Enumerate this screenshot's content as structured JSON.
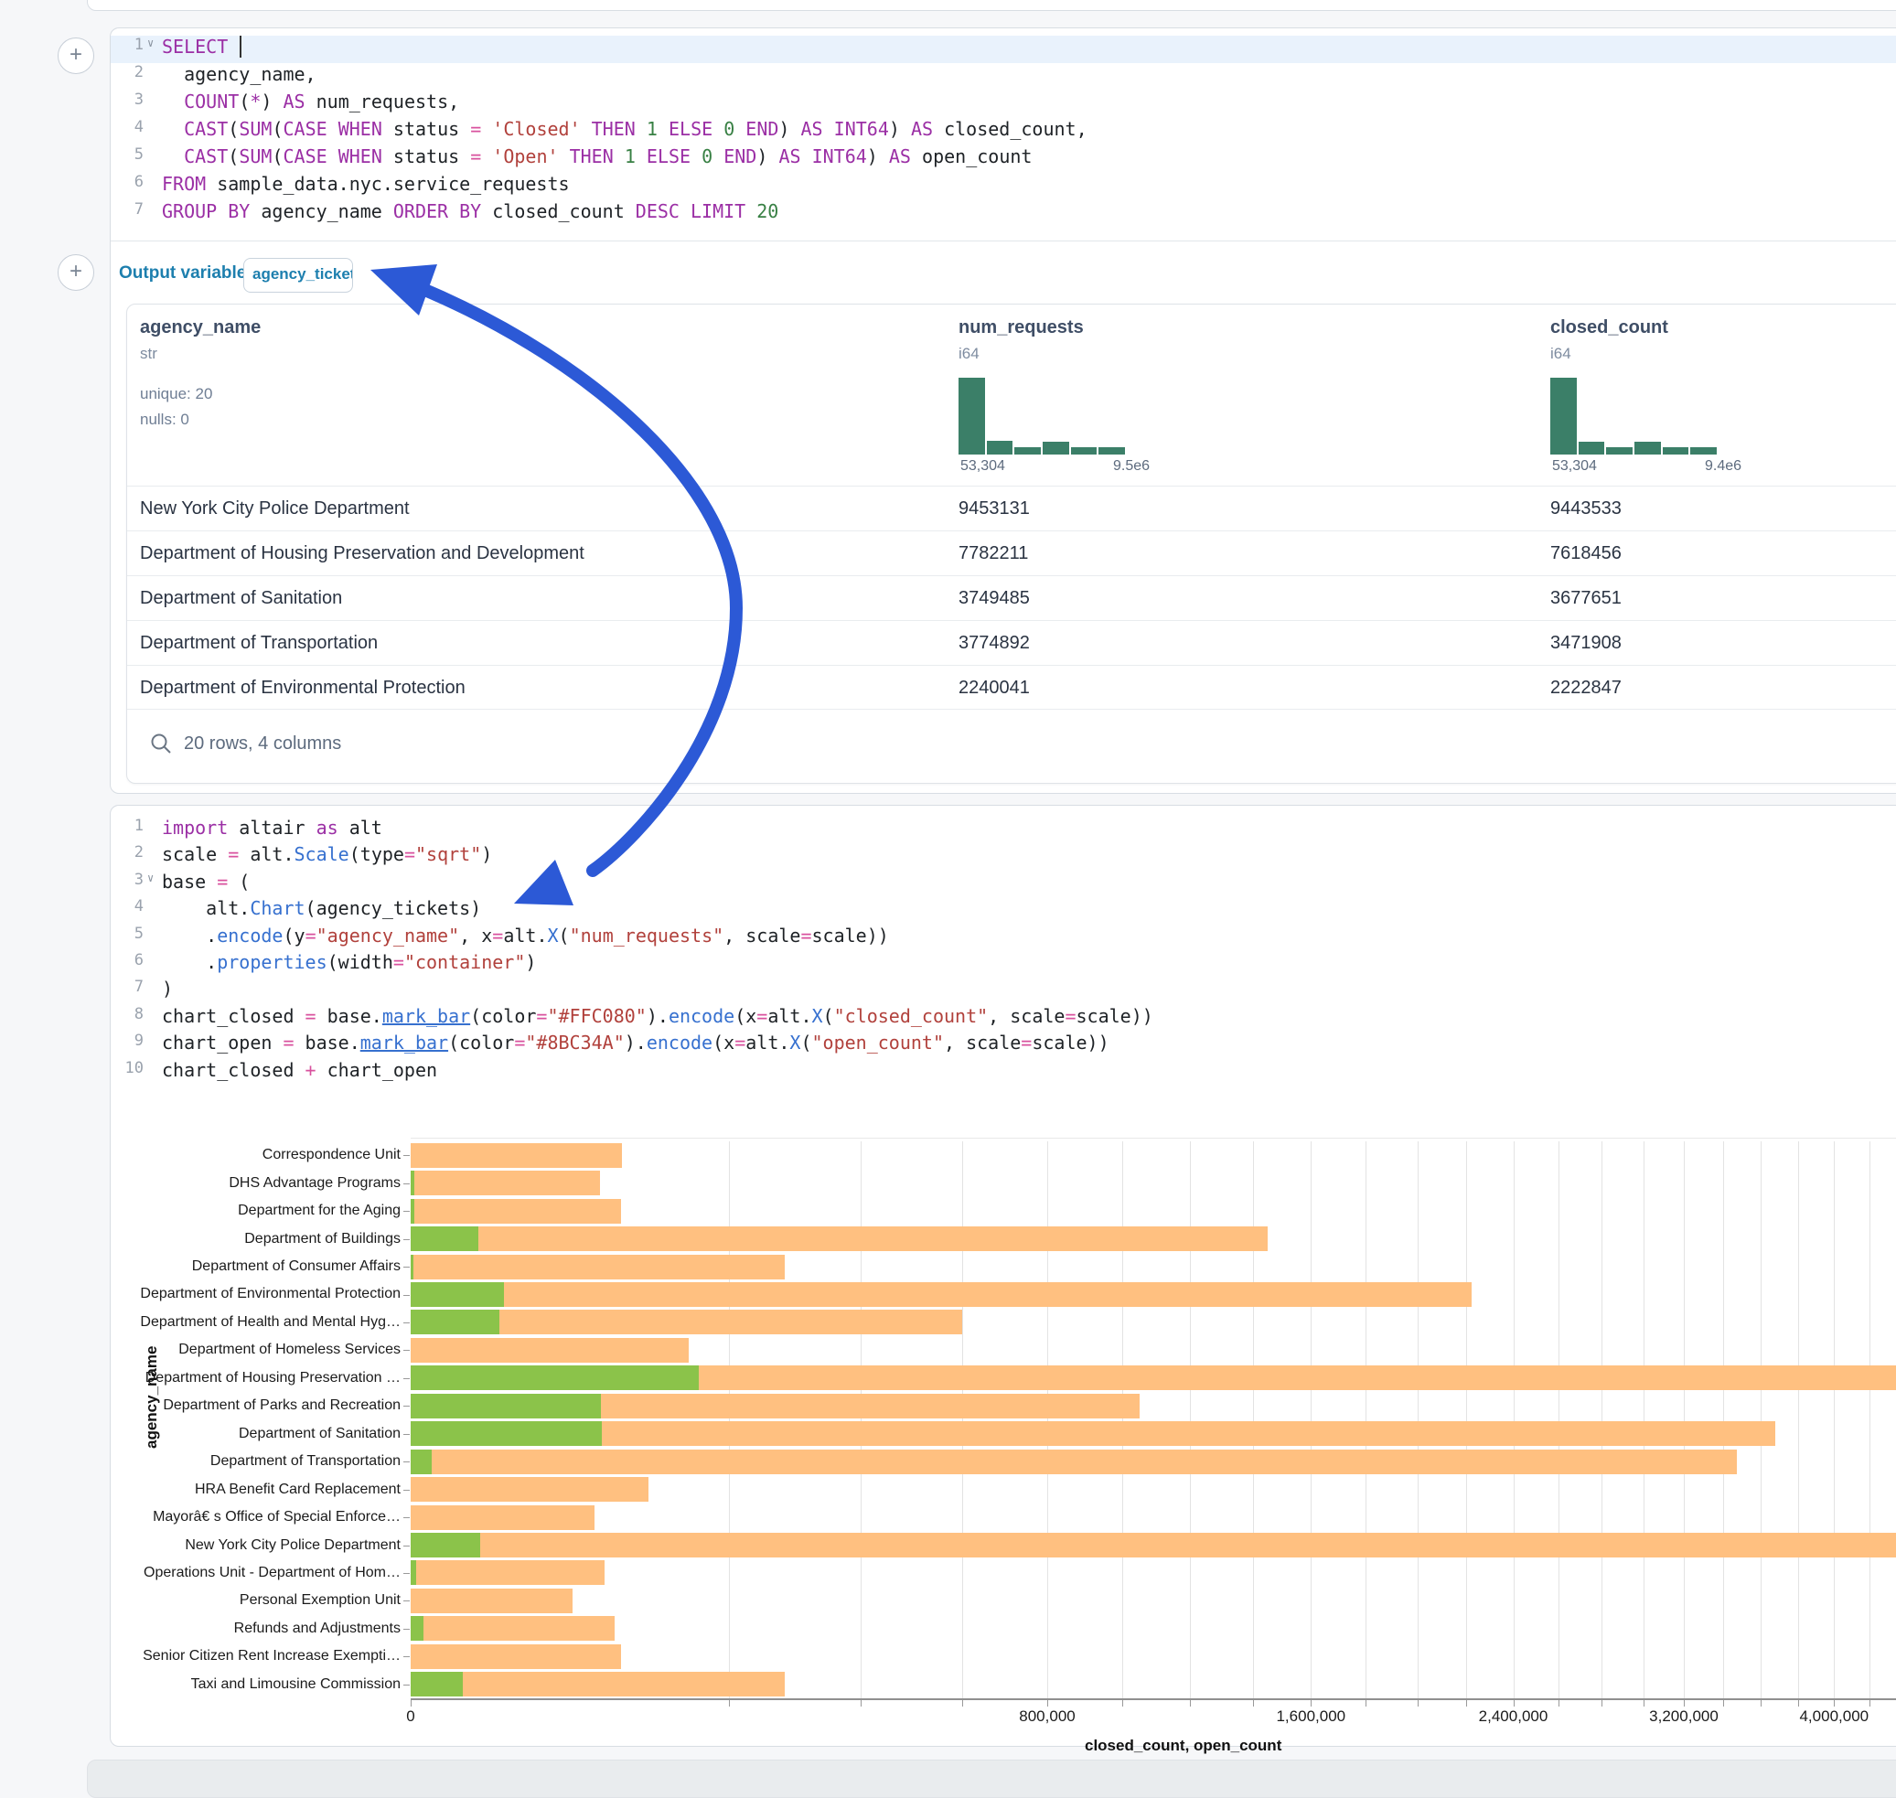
{
  "colors": {
    "keyword": "#9b2fa5",
    "string": "#b1413c",
    "number": "#388044",
    "operator": "#d8519e",
    "function": "#3670cf",
    "hist_bar": "#3b7f68",
    "arrow": "#2c59d6",
    "closed_bar_code": "#FFC080",
    "open_bar_code": "#8BC34A"
  },
  "cells": {
    "add_button_label": "+"
  },
  "sql_cell": {
    "lines": [
      {
        "n": "1",
        "fold": true,
        "active": true,
        "caret": true,
        "segments": [
          [
            "kw",
            "SELECT"
          ],
          [
            "pl",
            " "
          ]
        ]
      },
      {
        "n": "2",
        "segments": [
          [
            "pl",
            "  agency_name,"
          ]
        ]
      },
      {
        "n": "3",
        "segments": [
          [
            "pl",
            "  "
          ],
          [
            "kw",
            "COUNT"
          ],
          [
            "pl",
            "("
          ],
          [
            "kw",
            "*"
          ],
          [
            "pl",
            ") "
          ],
          [
            "kw",
            "AS"
          ],
          [
            "pl",
            " num_requests,"
          ]
        ]
      },
      {
        "n": "4",
        "segments": [
          [
            "pl",
            "  "
          ],
          [
            "kw",
            "CAST"
          ],
          [
            "pl",
            "("
          ],
          [
            "kw",
            "SUM"
          ],
          [
            "pl",
            "("
          ],
          [
            "kw",
            "CASE"
          ],
          [
            "pl",
            " "
          ],
          [
            "kw",
            "WHEN"
          ],
          [
            "pl",
            " status "
          ],
          [
            "op",
            "="
          ],
          [
            "pl",
            " "
          ],
          [
            "str",
            "'Closed'"
          ],
          [
            "pl",
            " "
          ],
          [
            "kw",
            "THEN"
          ],
          [
            "pl",
            " "
          ],
          [
            "num",
            "1"
          ],
          [
            "pl",
            " "
          ],
          [
            "kw",
            "ELSE"
          ],
          [
            "pl",
            " "
          ],
          [
            "num",
            "0"
          ],
          [
            "pl",
            " "
          ],
          [
            "kw",
            "END"
          ],
          [
            "pl",
            ") "
          ],
          [
            "kw",
            "AS"
          ],
          [
            "pl",
            " "
          ],
          [
            "kw",
            "INT64"
          ],
          [
            "pl",
            ") "
          ],
          [
            "kw",
            "AS"
          ],
          [
            "pl",
            " closed_count,"
          ]
        ]
      },
      {
        "n": "5",
        "segments": [
          [
            "pl",
            "  "
          ],
          [
            "kw",
            "CAST"
          ],
          [
            "pl",
            "("
          ],
          [
            "kw",
            "SUM"
          ],
          [
            "pl",
            "("
          ],
          [
            "kw",
            "CASE"
          ],
          [
            "pl",
            " "
          ],
          [
            "kw",
            "WHEN"
          ],
          [
            "pl",
            " status "
          ],
          [
            "op",
            "="
          ],
          [
            "pl",
            " "
          ],
          [
            "str",
            "'Open'"
          ],
          [
            "pl",
            " "
          ],
          [
            "kw",
            "THEN"
          ],
          [
            "pl",
            " "
          ],
          [
            "num",
            "1"
          ],
          [
            "pl",
            " "
          ],
          [
            "kw",
            "ELSE"
          ],
          [
            "pl",
            " "
          ],
          [
            "num",
            "0"
          ],
          [
            "pl",
            " "
          ],
          [
            "kw",
            "END"
          ],
          [
            "pl",
            ") "
          ],
          [
            "kw",
            "AS"
          ],
          [
            "pl",
            " "
          ],
          [
            "kw",
            "INT64"
          ],
          [
            "pl",
            ") "
          ],
          [
            "kw",
            "AS"
          ],
          [
            "pl",
            " open_count"
          ]
        ]
      },
      {
        "n": "6",
        "segments": [
          [
            "kw",
            "FROM"
          ],
          [
            "pl",
            " sample_data.nyc.service_requests"
          ]
        ]
      },
      {
        "n": "7",
        "segments": [
          [
            "kw",
            "GROUP BY"
          ],
          [
            "pl",
            " agency_name "
          ],
          [
            "kw",
            "ORDER BY"
          ],
          [
            "pl",
            " closed_count "
          ],
          [
            "kw",
            "DESC"
          ],
          [
            "pl",
            " "
          ],
          [
            "kw",
            "LIMIT"
          ],
          [
            "pl",
            " "
          ],
          [
            "num",
            "20"
          ]
        ]
      }
    ],
    "output_variable_label": "Output variable:",
    "output_variable_value": "agency_tickets"
  },
  "table": {
    "columns": [
      {
        "name": "agency_name",
        "type": "str",
        "stats": [
          "unique: 20",
          "nulls: 0"
        ]
      },
      {
        "name": "num_requests",
        "type": "i64",
        "hist": {
          "heights": [
            1,
            0.18,
            0.1,
            0.17,
            0.1,
            0.1
          ],
          "min_label": "53,304",
          "max_label": "9.5e6"
        }
      },
      {
        "name": "closed_count",
        "type": "i64",
        "hist": {
          "heights": [
            1,
            0.17,
            0.1,
            0.17,
            0.1,
            0.1
          ],
          "min_label": "53,304",
          "max_label": "9.4e6"
        }
      }
    ],
    "rows": [
      [
        "New York City Police Department",
        "9453131",
        "9443533"
      ],
      [
        "Department of Housing Preservation and Development",
        "7782211",
        "7618456"
      ],
      [
        "Department of Sanitation",
        "3749485",
        "3677651"
      ],
      [
        "Department of Transportation",
        "3774892",
        "3471908"
      ],
      [
        "Department of Environmental Protection",
        "2240041",
        "2222847"
      ]
    ],
    "footer": "20 rows, 4 columns"
  },
  "python_cell": {
    "lines": [
      {
        "n": "1",
        "segments": [
          [
            "kw",
            "import"
          ],
          [
            "pl",
            " altair "
          ],
          [
            "kw",
            "as"
          ],
          [
            "pl",
            " alt"
          ]
        ]
      },
      {
        "n": "2",
        "segments": [
          [
            "pl",
            "scale "
          ],
          [
            "op",
            "="
          ],
          [
            "pl",
            " alt."
          ],
          [
            "fn",
            "Scale"
          ],
          [
            "pl",
            "(type"
          ],
          [
            "op",
            "="
          ],
          [
            "str",
            "\"sqrt\""
          ],
          [
            "pl",
            ")"
          ]
        ]
      },
      {
        "n": "3",
        "fold": true,
        "segments": [
          [
            "pl",
            "base "
          ],
          [
            "op",
            "="
          ],
          [
            "pl",
            " ("
          ]
        ]
      },
      {
        "n": "4",
        "segments": [
          [
            "pl",
            "    alt."
          ],
          [
            "fn",
            "Chart"
          ],
          [
            "pl",
            "(agency_tickets)"
          ]
        ]
      },
      {
        "n": "5",
        "segments": [
          [
            "pl",
            "    ."
          ],
          [
            "fn",
            "encode"
          ],
          [
            "pl",
            "(y"
          ],
          [
            "op",
            "="
          ],
          [
            "str",
            "\"agency_name\""
          ],
          [
            "pl",
            ", x"
          ],
          [
            "op",
            "="
          ],
          [
            "pl",
            "alt."
          ],
          [
            "fn",
            "X"
          ],
          [
            "pl",
            "("
          ],
          [
            "str",
            "\"num_requests\""
          ],
          [
            "pl",
            ", scale"
          ],
          [
            "op",
            "="
          ],
          [
            "pl",
            "scale))"
          ]
        ]
      },
      {
        "n": "6",
        "segments": [
          [
            "pl",
            "    ."
          ],
          [
            "fn",
            "properties"
          ],
          [
            "pl",
            "(width"
          ],
          [
            "op",
            "="
          ],
          [
            "str",
            "\"container\""
          ],
          [
            "pl",
            ")"
          ]
        ]
      },
      {
        "n": "7",
        "segments": [
          [
            "pl",
            ")"
          ]
        ]
      },
      {
        "n": "8",
        "segments": [
          [
            "pl",
            "chart_closed "
          ],
          [
            "op",
            "="
          ],
          [
            "pl",
            " base."
          ],
          [
            "fnu",
            "mark_bar"
          ],
          [
            "pl",
            "(color"
          ],
          [
            "op",
            "="
          ],
          [
            "str",
            "\"#FFC080\""
          ],
          [
            "pl",
            ")."
          ],
          [
            "fn",
            "encode"
          ],
          [
            "pl",
            "(x"
          ],
          [
            "op",
            "="
          ],
          [
            "pl",
            "alt."
          ],
          [
            "fn",
            "X"
          ],
          [
            "pl",
            "("
          ],
          [
            "str",
            "\"closed_count\""
          ],
          [
            "pl",
            ", scale"
          ],
          [
            "op",
            "="
          ],
          [
            "pl",
            "scale))"
          ]
        ]
      },
      {
        "n": "9",
        "segments": [
          [
            "pl",
            "chart_open "
          ],
          [
            "op",
            "="
          ],
          [
            "pl",
            " base."
          ],
          [
            "fnu",
            "mark_bar"
          ],
          [
            "pl",
            "(color"
          ],
          [
            "op",
            "="
          ],
          [
            "str",
            "\"#8BC34A\""
          ],
          [
            "pl",
            ")."
          ],
          [
            "fn",
            "encode"
          ],
          [
            "pl",
            "(x"
          ],
          [
            "op",
            "="
          ],
          [
            "pl",
            "alt."
          ],
          [
            "fn",
            "X"
          ],
          [
            "pl",
            "("
          ],
          [
            "str",
            "\"open_count\""
          ],
          [
            "pl",
            ", scale"
          ],
          [
            "op",
            "="
          ],
          [
            "pl",
            "scale))"
          ]
        ]
      },
      {
        "n": "10",
        "segments": [
          [
            "pl",
            "chart_closed "
          ],
          [
            "op",
            "+"
          ],
          [
            "pl",
            " chart_open"
          ]
        ]
      }
    ]
  },
  "chart_data": {
    "type": "bar",
    "orientation": "horizontal",
    "x_scale": "sqrt",
    "xlabel": "closed_count, open_count",
    "ylabel": "agency_name",
    "grid": true,
    "gridline_step": 200000,
    "x_ticks": [
      0,
      800000,
      1600000,
      2400000,
      3200000,
      4000000
    ],
    "x_tick_labels": [
      "0",
      "800,000",
      "1,600,000",
      "2,400,000",
      "3,200,000",
      "4,000,000"
    ],
    "categories": [
      "Correspondence Unit",
      "DHS Advantage Programs",
      "Department for the Aging",
      "Department of Buildings",
      "Department of Consumer Affairs",
      "Department of Environmental Protection",
      "Department of Health and Mental Hyg…",
      "Department of Homeless Services",
      "Department of Housing Preservation …",
      "Department of Parks and Recreation",
      "Department of Sanitation",
      "Department of Transportation",
      "HRA Benefit Card Replacement",
      "Mayorâ€ s Office of Special Enforce…",
      "New York City Police Department",
      "Operations Unit - Department of Hom…",
      "Personal Exemption Unit",
      "Refunds and Adjustments",
      "Senior Citizen Rent Increase Exempti…",
      "Taxi and Limousine Commission"
    ],
    "series": [
      {
        "name": "closed_count",
        "color": "#FFC080",
        "values": [
          88000,
          71000,
          87000,
          1450000,
          276000,
          2222847,
          600000,
          153000,
          7618456,
          1050000,
          3677651,
          3471908,
          112000,
          67000,
          9443533,
          74000,
          52000,
          82000,
          87000,
          276000
        ]
      },
      {
        "name": "open_count",
        "color": "#8BC34A",
        "values": [
          0,
          20,
          20,
          9000,
          10,
          17194,
          15500,
          0,
          163755,
          71500,
          71834,
          900,
          0,
          0,
          9598,
          60,
          0,
          300,
          0,
          5300
        ]
      }
    ]
  }
}
